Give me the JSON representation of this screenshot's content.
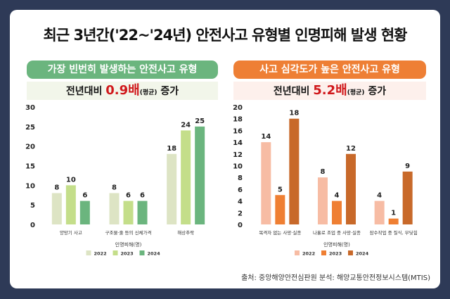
{
  "title": "최근 3년간('22~'24년) 안전사고 유형별  인명피해 발생 현황",
  "left": {
    "header": "가장 빈번히 발생하는 안전사고 유형",
    "sub_prefix": "전년대비 ",
    "sub_value": "0.9배",
    "sub_note": "(평균)",
    "sub_suffix": " 증가",
    "accent": "#6bb57e"
  },
  "right": {
    "header": "사고 심각도가 높은 안전사고 유형",
    "sub_prefix": "전년대비 ",
    "sub_value": "5.2배",
    "sub_note": "(평균)",
    "sub_suffix": " 증가",
    "accent": "#ee7f35"
  },
  "footer": "출처: 중앙해양안전심판원   분석: 해양교통안전정보시스템(MTIS)",
  "chart_data": [
    {
      "type": "bar",
      "categories": [
        "양망기 사고",
        "구조물·줄 등의 신체가격",
        "해상추락"
      ],
      "series": [
        {
          "name": "2022",
          "values": [
            8,
            8,
            18
          ],
          "color": "#dde4c4"
        },
        {
          "name": "2023",
          "values": [
            10,
            6,
            24
          ],
          "color": "#c4de8a"
        },
        {
          "name": "2024",
          "values": [
            6,
            6,
            25
          ],
          "color": "#6bb57e"
        }
      ],
      "xlabel": "인명피해(명)",
      "ylim": [
        0,
        30
      ],
      "yticks": [
        0,
        5,
        10,
        15,
        20,
        25,
        30
      ],
      "legend": "bottom",
      "grid": false
    },
    {
      "type": "bar",
      "categories": [
        "목격자 없는 사망·실종",
        "나홀로 조업 중 사망·실종",
        "잠수작업 중 질식, 부딪힘"
      ],
      "series": [
        {
          "name": "2022",
          "values": [
            14,
            8,
            4
          ],
          "color": "#f7bca4"
        },
        {
          "name": "2023",
          "values": [
            5,
            4,
            1
          ],
          "color": "#ef7f33"
        },
        {
          "name": "2024",
          "values": [
            18,
            12,
            9
          ],
          "color": "#c8692a"
        }
      ],
      "xlabel": "인명피해(명)",
      "ylim": [
        0,
        20
      ],
      "yticks": [
        0,
        2,
        4,
        6,
        8,
        10,
        12,
        14,
        16,
        18,
        20
      ],
      "legend": "bottom",
      "grid": false
    }
  ]
}
